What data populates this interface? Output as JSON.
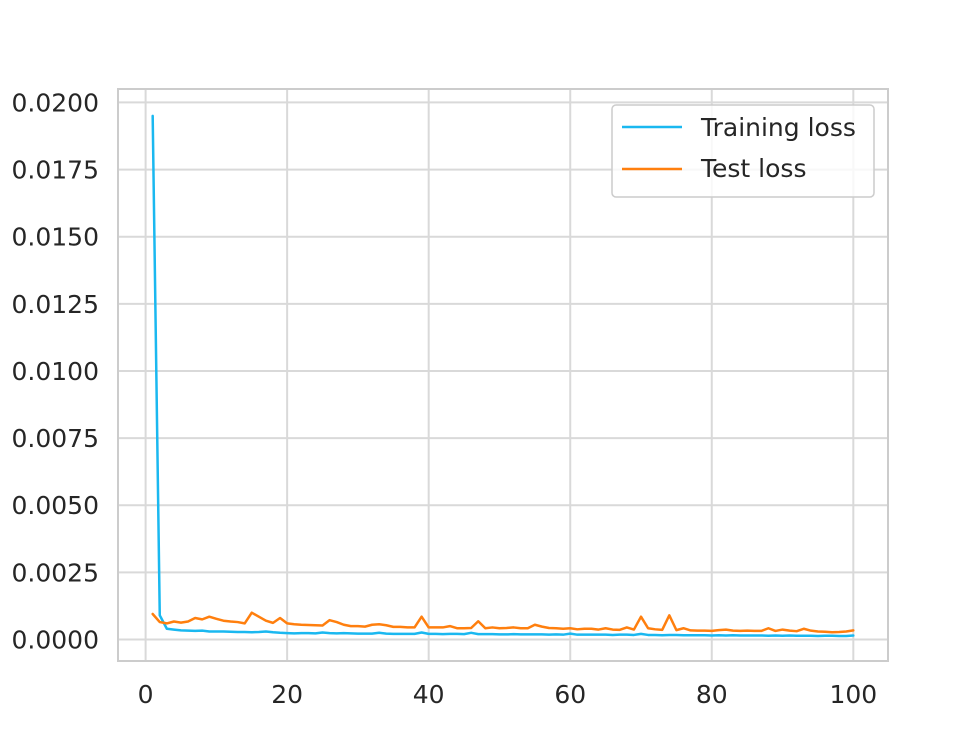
{
  "chart_data": {
    "type": "line",
    "title": "",
    "xlabel": "",
    "ylabel": "",
    "xlim": [
      -3.9,
      104.9
    ],
    "ylim": [
      -0.0008,
      0.0205
    ],
    "xticks": [
      0,
      20,
      40,
      60,
      80,
      100
    ],
    "xtick_labels": [
      "0",
      "20",
      "40",
      "60",
      "80",
      "100"
    ],
    "yticks": [
      0.0,
      0.0025,
      0.005,
      0.0075,
      0.01,
      0.0125,
      0.015,
      0.0175,
      0.02
    ],
    "ytick_labels": [
      "0.0000",
      "0.0025",
      "0.0050",
      "0.0075",
      "0.0100",
      "0.0125",
      "0.0150",
      "0.0175",
      "0.0200"
    ],
    "grid": true,
    "legend_position": "top-right",
    "x": [
      1,
      2,
      3,
      4,
      5,
      6,
      7,
      8,
      9,
      10,
      11,
      12,
      13,
      14,
      15,
      16,
      17,
      18,
      19,
      20,
      21,
      22,
      23,
      24,
      25,
      26,
      27,
      28,
      29,
      30,
      31,
      32,
      33,
      34,
      35,
      36,
      37,
      38,
      39,
      40,
      41,
      42,
      43,
      44,
      45,
      46,
      47,
      48,
      49,
      50,
      51,
      52,
      53,
      54,
      55,
      56,
      57,
      58,
      59,
      60,
      61,
      62,
      63,
      64,
      65,
      66,
      67,
      68,
      69,
      70,
      71,
      72,
      73,
      74,
      75,
      76,
      77,
      78,
      79,
      80,
      81,
      82,
      83,
      84,
      85,
      86,
      87,
      88,
      89,
      90,
      91,
      92,
      93,
      94,
      95,
      96,
      97,
      98,
      99,
      100
    ],
    "series": [
      {
        "name": "Training loss",
        "color": "#1ab8f0",
        "values": [
          0.0195,
          0.0009,
          0.0004,
          0.00037,
          0.00034,
          0.00033,
          0.00032,
          0.00033,
          0.0003,
          0.0003,
          0.0003,
          0.00029,
          0.00028,
          0.00028,
          0.00027,
          0.00028,
          0.0003,
          0.00027,
          0.00025,
          0.00024,
          0.00023,
          0.00024,
          0.00024,
          0.00023,
          0.00026,
          0.00024,
          0.00023,
          0.00024,
          0.00023,
          0.00022,
          0.00022,
          0.00022,
          0.00025,
          0.00022,
          0.00021,
          0.00021,
          0.00021,
          0.00021,
          0.00026,
          0.00021,
          0.00021,
          0.0002,
          0.00021,
          0.00021,
          0.0002,
          0.00025,
          0.0002,
          0.0002,
          0.0002,
          0.00019,
          0.00019,
          0.0002,
          0.00019,
          0.00019,
          0.00019,
          0.00019,
          0.00018,
          0.00019,
          0.00018,
          0.00022,
          0.00018,
          0.00018,
          0.00018,
          0.00018,
          0.00018,
          0.00017,
          0.00018,
          0.00018,
          0.00017,
          0.00021,
          0.00017,
          0.00017,
          0.00016,
          0.00017,
          0.00017,
          0.00016,
          0.00016,
          0.00016,
          0.00016,
          0.00015,
          0.00016,
          0.00015,
          0.00016,
          0.00015,
          0.00015,
          0.00015,
          0.00015,
          0.00014,
          0.00015,
          0.00014,
          0.00015,
          0.00014,
          0.00014,
          0.00014,
          0.00013,
          0.00014,
          0.00014,
          0.00013,
          0.00013,
          0.00015
        ]
      },
      {
        "name": "Test loss",
        "color": "#ff7f0e",
        "values": [
          0.00095,
          0.00065,
          0.0006,
          0.00067,
          0.00063,
          0.00067,
          0.0008,
          0.00075,
          0.00085,
          0.00077,
          0.0007,
          0.00067,
          0.00065,
          0.0006,
          0.001,
          0.00085,
          0.0007,
          0.00062,
          0.0008,
          0.0006,
          0.00057,
          0.00055,
          0.00054,
          0.00053,
          0.00052,
          0.00072,
          0.00065,
          0.00055,
          0.0005,
          0.0005,
          0.00048,
          0.00055,
          0.00057,
          0.00053,
          0.00047,
          0.00047,
          0.00045,
          0.00045,
          0.00085,
          0.00045,
          0.00045,
          0.00045,
          0.0005,
          0.00042,
          0.00042,
          0.00043,
          0.00068,
          0.00042,
          0.00045,
          0.00042,
          0.00043,
          0.00045,
          0.00042,
          0.00042,
          0.00055,
          0.00048,
          0.00043,
          0.00042,
          0.0004,
          0.00042,
          0.00038,
          0.0004,
          0.0004,
          0.00037,
          0.00042,
          0.00037,
          0.00036,
          0.00045,
          0.00037,
          0.00085,
          0.00042,
          0.00038,
          0.00036,
          0.0009,
          0.00035,
          0.00042,
          0.00034,
          0.00033,
          0.00033,
          0.00032,
          0.00035,
          0.00037,
          0.00033,
          0.00032,
          0.00033,
          0.00032,
          0.00032,
          0.00042,
          0.00032,
          0.00037,
          0.00033,
          0.00031,
          0.0004,
          0.00033,
          0.0003,
          0.00029,
          0.00027,
          0.00028,
          0.0003,
          0.00034
        ]
      }
    ]
  }
}
